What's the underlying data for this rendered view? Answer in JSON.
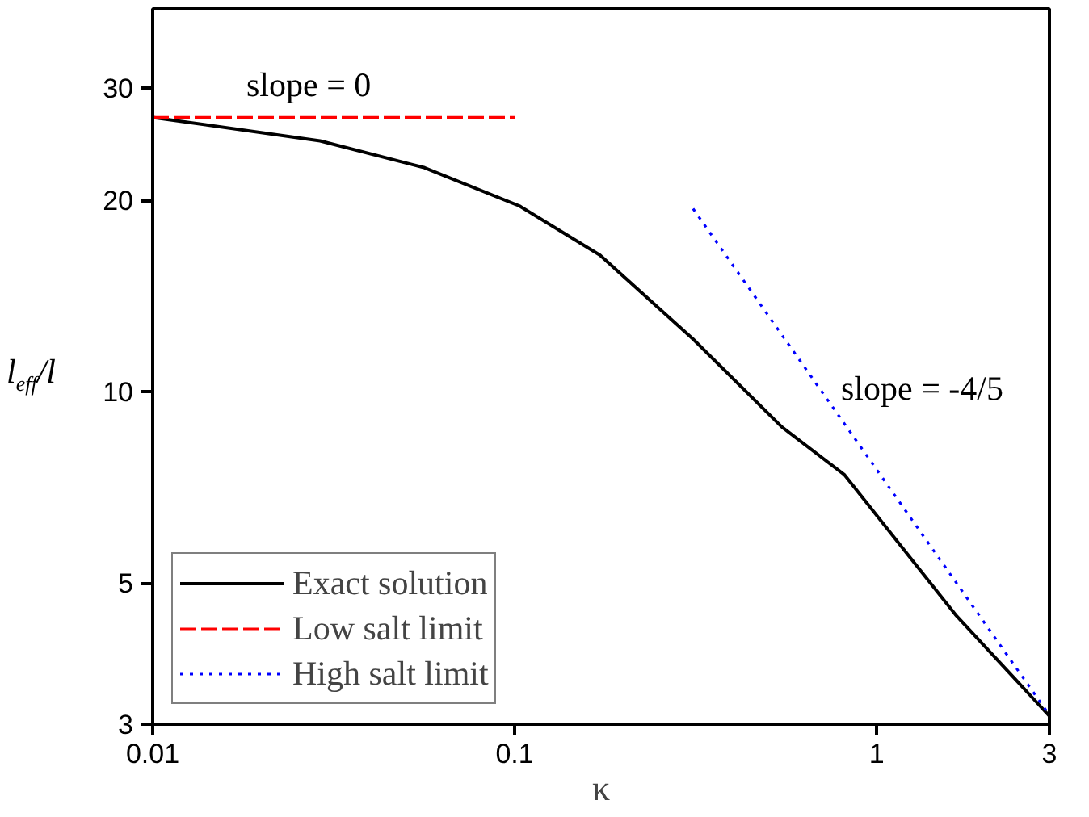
{
  "chart_data": {
    "type": "line",
    "xlabel": "κ",
    "ylabel": "l$_{eff}$/l",
    "log": "xy",
    "grid": false,
    "legend": "bottom left",
    "xlim": [
      0.01,
      3
    ],
    "ylim": [
      3,
      40
    ],
    "xticks": [
      0.01,
      0.1,
      1,
      3
    ],
    "yticks": [
      3,
      5,
      10,
      20,
      30
    ],
    "series": [
      {
        "name": "Exact solution",
        "color": "#000000",
        "line_style": "solid",
        "x": [
          0.01,
          0.029,
          0.0564,
          0.103,
          0.172,
          0.311,
          0.547,
          0.815,
          1.65,
          3
        ],
        "values": [
          27,
          24.8,
          22.5,
          19.6,
          16.4,
          12.1,
          8.8,
          7.4,
          4.46,
          3.09
        ]
      },
      {
        "name": "Low salt limit",
        "color": "#ff0000",
        "line_style": "dashed",
        "x": [
          0.01,
          0.1
        ],
        "values": [
          27,
          27
        ]
      },
      {
        "name": "High salt limit",
        "color": "#0000ff",
        "line_style": "dotted",
        "x": [
          0.311,
          3
        ],
        "values": [
          19.4,
          3.1
        ]
      }
    ],
    "annotations": [
      "slope = 0",
      "slope = -4/5"
    ]
  }
}
